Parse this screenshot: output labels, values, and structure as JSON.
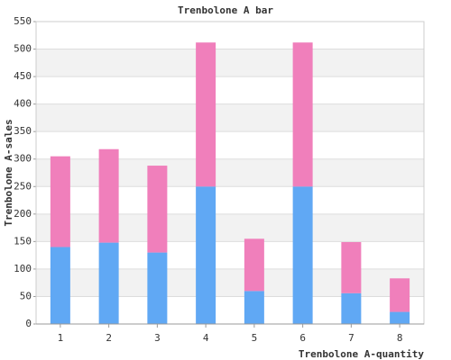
{
  "chart_data": {
    "type": "stacked_bar",
    "title": "Trenbolone A bar",
    "x_label": "Trenbolone A-quantity",
    "y_label": "Trenbolone A-sales",
    "categories": [
      "1",
      "2",
      "3",
      "4",
      "5",
      "6",
      "7",
      "8"
    ],
    "series": [
      {
        "color": "#60a8f4",
        "values": [
          140,
          148,
          130,
          250,
          60,
          250,
          56,
          22
        ]
      },
      {
        "color": "#f07fbb",
        "values": [
          165,
          170,
          158,
          262,
          95,
          262,
          93,
          61
        ]
      }
    ],
    "ylim": [
      0,
      550
    ],
    "yticks": [
      0,
      50,
      100,
      150,
      200,
      250,
      300,
      350,
      400,
      450,
      500,
      550
    ],
    "grid": true
  }
}
